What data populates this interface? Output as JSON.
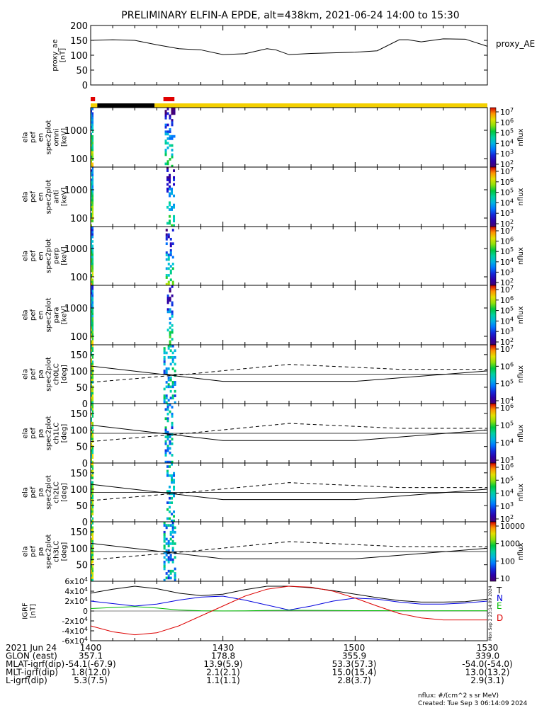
{
  "figure": {
    "title": "PRELIMINARY ELFIN-A EPDE, alt=438km, 2021-06-24 14:00 to 15:30",
    "footer_units": "nflux: #/(cm^2 s sr MeV)",
    "footer_created": "Created: Tue Sep  3 06:14:09 2024",
    "side_stamp": "Mon Sep  2 23:14:09 2024"
  },
  "colors": {
    "T": "#000000",
    "N": "#0000dd",
    "E": "#00bb00",
    "D": "#dd0000",
    "status_yellow": "#f4d000",
    "status_black": "#000000",
    "status_red": "#e00000"
  },
  "annotations": {
    "labels": [
      {
        "label": "2021 Jun 24",
        "values": [
          "1400",
          "1430",
          "1500",
          "1530"
        ]
      },
      {
        "label": "GLON (east)",
        "values": [
          "357.1",
          "178.8",
          "355.9",
          "339.0"
        ]
      },
      {
        "label": "MLAT-igrf(dip)",
        "values": [
          "-54.1(-67.9)",
          "13.9(5.9)",
          "53.3(57.3)",
          "-54.0(-54.0)"
        ]
      },
      {
        "label": "MLT-igrf(dip)",
        "values": [
          "1.8(12.0)",
          "2.1(2.1)",
          "15.0(15.4)",
          "13.0(13.2)"
        ]
      },
      {
        "label": "L-igrf(dip)",
        "values": [
          "5.3(7.5)",
          "1.1(1.1)",
          "2.8(3.7)",
          "2.9(3.1)"
        ]
      }
    ]
  },
  "chart_data": [
    {
      "type": "line",
      "panel": "proxy_ae",
      "ylabel": "proxy_ae [nT]",
      "legend": "proxy_AE",
      "ylim": [
        0,
        200
      ],
      "yticks": [
        "0",
        "50",
        "100",
        "150",
        "200"
      ],
      "x_minutes": [
        0,
        5,
        10,
        15,
        20,
        25,
        30,
        35,
        40,
        42,
        45,
        50,
        55,
        60,
        65,
        70,
        72,
        75,
        80,
        85,
        90
      ],
      "y": [
        150,
        152,
        150,
        135,
        122,
        118,
        102,
        105,
        122,
        118,
        102,
        106,
        108,
        110,
        115,
        152,
        152,
        145,
        155,
        154,
        130
      ]
    },
    {
      "type": "line",
      "panel": "status",
      "segments": [
        {
          "color": "yellow",
          "x": [
            0,
            1.5
          ]
        },
        {
          "color": "black",
          "x": [
            1.5,
            14.5
          ]
        },
        {
          "color": "yellow",
          "x": [
            14.5,
            90
          ]
        }
      ],
      "markers": [
        {
          "color": "red",
          "x": [
            0,
            1
          ]
        },
        {
          "color": "red",
          "x": [
            16.5,
            19
          ]
        }
      ]
    },
    {
      "type": "heatmap",
      "panel": "ela pef en spec2plot omni",
      "ylabel": "ela pef en spec2plot omni [keV]",
      "yscale": "log",
      "yticks": [
        "100",
        "1000"
      ],
      "colorbar": {
        "label": "nflux",
        "ticks": [
          "10^2",
          "10^3",
          "10^4",
          "10^5",
          "10^6",
          "10^7"
        ]
      },
      "bursts_minutes": [
        [
          0,
          0.8
        ],
        [
          16.8,
          19.5
        ]
      ]
    },
    {
      "type": "heatmap",
      "panel": "ela pef en spec2plot anti",
      "ylabel": "ela pef en spec2plot anti [keV]",
      "yscale": "log",
      "yticks": [
        "100",
        "1000"
      ],
      "colorbar": {
        "label": "nflux",
        "ticks": [
          "10^2",
          "10^3",
          "10^4",
          "10^5",
          "10^6",
          "10^7"
        ]
      },
      "bursts_minutes": [
        [
          0,
          0.8
        ],
        [
          17.2,
          19.2
        ]
      ]
    },
    {
      "type": "heatmap",
      "panel": "ela pef en spec2plot perp",
      "ylabel": "ela pef en spec2plot perp [keV]",
      "yscale": "log",
      "yticks": [
        "100",
        "1000"
      ],
      "colorbar": {
        "label": "nflux",
        "ticks": [
          "10^2",
          "10^3",
          "10^4",
          "10^5",
          "10^6",
          "10^7"
        ]
      },
      "bursts_minutes": [
        [
          0,
          0.8
        ],
        [
          17,
          19.3
        ]
      ]
    },
    {
      "type": "heatmap",
      "panel": "ela pef en spec2plot para",
      "ylabel": "ela pef en spec2plot para [keV]",
      "yscale": "log",
      "yticks": [
        "100",
        "1000"
      ],
      "colorbar": {
        "label": "nflux",
        "ticks": [
          "10^2",
          "10^3",
          "10^4",
          "10^5",
          "10^6",
          "10^7"
        ]
      },
      "bursts_minutes": [
        [
          0,
          0.8
        ],
        [
          17.3,
          19.2
        ]
      ]
    },
    {
      "type": "heatmap",
      "panel": "ela pef pa spec2plot ch0LC",
      "ylabel": "ela pef pa spec2plot ch0LC [deg]",
      "ylim": [
        0,
        180
      ],
      "yticks": [
        "0",
        "50",
        "100",
        "150"
      ],
      "colorbar": {
        "label": "nflux",
        "ticks": [
          "10^4",
          "10^5",
          "10^6",
          "10^7"
        ]
      },
      "loss_cone_solid": [
        [
          0,
          115
        ],
        [
          30,
          68
        ],
        [
          60,
          68
        ],
        [
          90,
          100
        ]
      ],
      "loss_cone_dashed": [
        [
          0,
          65
        ],
        [
          22,
          90
        ],
        [
          45,
          120
        ],
        [
          70,
          105
        ],
        [
          90,
          105
        ]
      ],
      "bursts_minutes": [
        [
          0,
          0.8
        ],
        [
          16.5,
          19.5
        ]
      ]
    },
    {
      "type": "heatmap",
      "panel": "ela pef pa spec2plot ch1LC",
      "ylabel": "ela pef pa spec2plot ch1LC [deg]",
      "ylim": [
        0,
        180
      ],
      "yticks": [
        "0",
        "50",
        "100",
        "150"
      ],
      "colorbar": {
        "label": "nflux",
        "ticks": [
          "10^3",
          "10^4",
          "10^5",
          "10^6"
        ]
      },
      "loss_cone_solid": [
        [
          0,
          115
        ],
        [
          30,
          68
        ],
        [
          60,
          68
        ],
        [
          90,
          100
        ]
      ],
      "loss_cone_dashed": [
        [
          0,
          65
        ],
        [
          22,
          90
        ],
        [
          45,
          120
        ],
        [
          70,
          105
        ],
        [
          90,
          105
        ]
      ],
      "bursts_minutes": [
        [
          0,
          0.8
        ],
        [
          16.8,
          19.2
        ]
      ]
    },
    {
      "type": "heatmap",
      "panel": "ela pef pa spec2plot ch2LC",
      "ylabel": "ela pef pa spec2plot ch2LC [deg]",
      "ylim": [
        0,
        180
      ],
      "yticks": [
        "0",
        "50",
        "100",
        "150"
      ],
      "colorbar": {
        "label": "nflux",
        "ticks": [
          "10^2",
          "10^3",
          "10^4",
          "10^5",
          "10^6"
        ]
      },
      "loss_cone_solid": [
        [
          0,
          115
        ],
        [
          30,
          68
        ],
        [
          60,
          68
        ],
        [
          90,
          100
        ]
      ],
      "loss_cone_dashed": [
        [
          0,
          65
        ],
        [
          22,
          90
        ],
        [
          45,
          120
        ],
        [
          70,
          105
        ],
        [
          90,
          105
        ]
      ],
      "bursts_minutes": [
        [
          0,
          0.8
        ],
        [
          17.2,
          19.2
        ]
      ]
    },
    {
      "type": "heatmap",
      "panel": "ela pef pa spec2plot ch3LC",
      "ylabel": "ela pef pa spec2plot ch3LC [deg]",
      "ylim": [
        0,
        180
      ],
      "yticks": [
        "50",
        "100",
        "150"
      ],
      "colorbar": {
        "label": "nflux",
        "ticks": [
          "10",
          "100",
          "1000",
          "10000"
        ]
      },
      "loss_cone_solid": [
        [
          0,
          115
        ],
        [
          30,
          68
        ],
        [
          60,
          68
        ],
        [
          90,
          100
        ]
      ],
      "loss_cone_dashed": [
        [
          0,
          65
        ],
        [
          22,
          90
        ],
        [
          45,
          120
        ],
        [
          70,
          105
        ],
        [
          90,
          105
        ]
      ],
      "bursts_minutes": [
        [
          0,
          0.8
        ],
        [
          16.5,
          19.5
        ]
      ]
    },
    {
      "type": "line",
      "panel": "IGRF",
      "ylabel": "IGRF [nT]",
      "ylim": [
        -60000,
        60000
      ],
      "yticks": [
        "-6x10^4",
        "-4x10^4",
        "-2x10^4",
        "0",
        "2x10^4",
        "4x10^4",
        "6x10^4"
      ],
      "x_minutes": [
        0,
        5,
        10,
        15,
        20,
        25,
        30,
        35,
        40,
        45,
        50,
        55,
        60,
        65,
        70,
        75,
        80,
        85,
        90
      ],
      "series": [
        {
          "name": "T",
          "values": [
            36000,
            44000,
            50000,
            45000,
            36000,
            31000,
            34000,
            43000,
            50000,
            50000,
            47000,
            41000,
            34000,
            27000,
            21000,
            18000,
            18000,
            19000,
            24000
          ]
        },
        {
          "name": "N",
          "values": [
            20000,
            15000,
            10000,
            14000,
            22000,
            28000,
            30000,
            22000,
            12000,
            2000,
            10000,
            20000,
            26000,
            24000,
            18000,
            14000,
            14000,
            16000,
            20000
          ]
        },
        {
          "name": "E",
          "values": [
            5000,
            7000,
            9000,
            6000,
            2000,
            500,
            200,
            300,
            1000,
            1500,
            1200,
            1000,
            800,
            700,
            600,
            500,
            500,
            500,
            500
          ]
        },
        {
          "name": "D",
          "values": [
            -30000,
            -42000,
            -48000,
            -44000,
            -30000,
            -10000,
            10000,
            30000,
            44000,
            50000,
            48000,
            40000,
            26000,
            10000,
            -5000,
            -14000,
            -18000,
            -18000,
            -18000
          ]
        }
      ]
    }
  ]
}
